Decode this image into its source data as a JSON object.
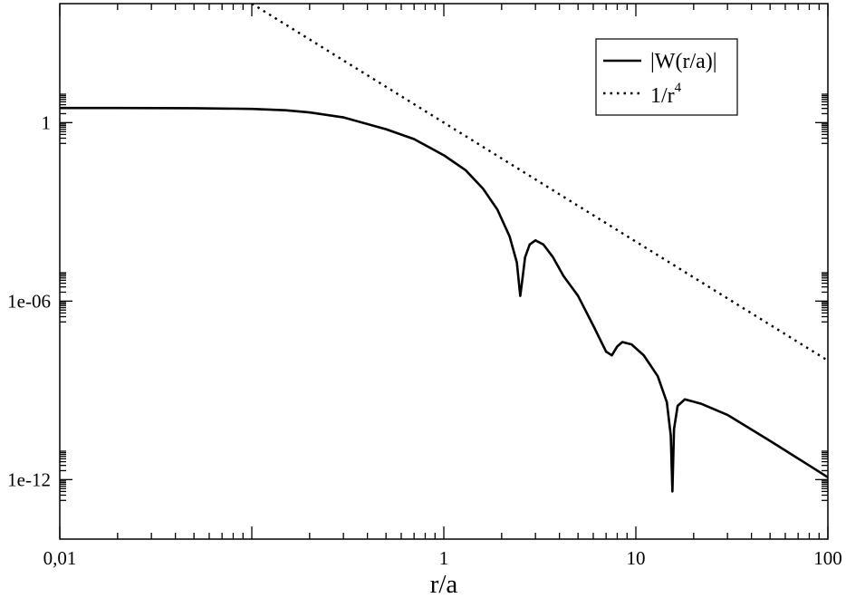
{
  "chart_data": {
    "type": "line",
    "title": "",
    "xlabel": "r/a",
    "ylabel": "",
    "xscale": "log",
    "yscale": "log",
    "xlim": [
      0.01,
      100
    ],
    "ylim": [
      1e-14,
      10000.0
    ],
    "grid": false,
    "legend_position": "top-right",
    "x_tick_labels": [
      {
        "value": 0.01,
        "label": "0,01"
      },
      {
        "value": 1,
        "label": "1"
      },
      {
        "value": 10,
        "label": "10"
      },
      {
        "value": 100,
        "label": "100"
      }
    ],
    "y_tick_labels": [
      {
        "value": 1,
        "label": "1"
      },
      {
        "value": 1e-06,
        "label": "1e-06"
      },
      {
        "value": 1e-12,
        "label": "1e-12"
      }
    ],
    "series": [
      {
        "name": "|W(r/a)|",
        "style": "solid",
        "color": "#000000",
        "points": [
          [
            0.01,
            3.1
          ],
          [
            0.02,
            3.1
          ],
          [
            0.05,
            3.05
          ],
          [
            0.1,
            2.9
          ],
          [
            0.15,
            2.6
          ],
          [
            0.2,
            2.2
          ],
          [
            0.3,
            1.5
          ],
          [
            0.5,
            0.6
          ],
          [
            0.7,
            0.28
          ],
          [
            1.0,
            0.08
          ],
          [
            1.3,
            0.025
          ],
          [
            1.6,
            0.006
          ],
          [
            1.9,
            0.0012
          ],
          [
            2.2,
            0.00015
          ],
          [
            2.4,
            2e-05
          ],
          [
            2.5,
            1.5e-06
          ],
          [
            2.55,
            4e-06
          ],
          [
            2.65,
            3e-05
          ],
          [
            2.8,
            8e-05
          ],
          [
            3.0,
            0.00011
          ],
          [
            3.3,
            8e-05
          ],
          [
            3.7,
            3e-05
          ],
          [
            4.2,
            7e-06
          ],
          [
            5.0,
            1.5e-06
          ],
          [
            6.0,
            1.5e-07
          ],
          [
            7.0,
            2e-08
          ],
          [
            7.5,
            1.5e-08
          ],
          [
            8.0,
            3e-08
          ],
          [
            8.5,
            4.2e-08
          ],
          [
            9.5,
            3.5e-08
          ],
          [
            11.0,
            1.5e-08
          ],
          [
            13.0,
            3e-09
          ],
          [
            14.5,
            4e-10
          ],
          [
            15.2,
            3e-11
          ],
          [
            15.5,
            4e-13
          ],
          [
            15.8,
            5e-11
          ],
          [
            16.5,
            3e-10
          ],
          [
            18.0,
            5e-10
          ],
          [
            22.0,
            3.5e-10
          ],
          [
            30.0,
            1.5e-10
          ],
          [
            50.0,
            2e-11
          ],
          [
            100.0,
            1.2e-12
          ]
        ]
      },
      {
        "name": "1/r",
        "name_superscript": "4",
        "style": "dotted",
        "color": "#000000",
        "points": [
          [
            0.1,
            10000
          ],
          [
            1,
            1
          ],
          [
            10,
            0.0001
          ],
          [
            100,
            1e-08
          ]
        ]
      }
    ]
  }
}
